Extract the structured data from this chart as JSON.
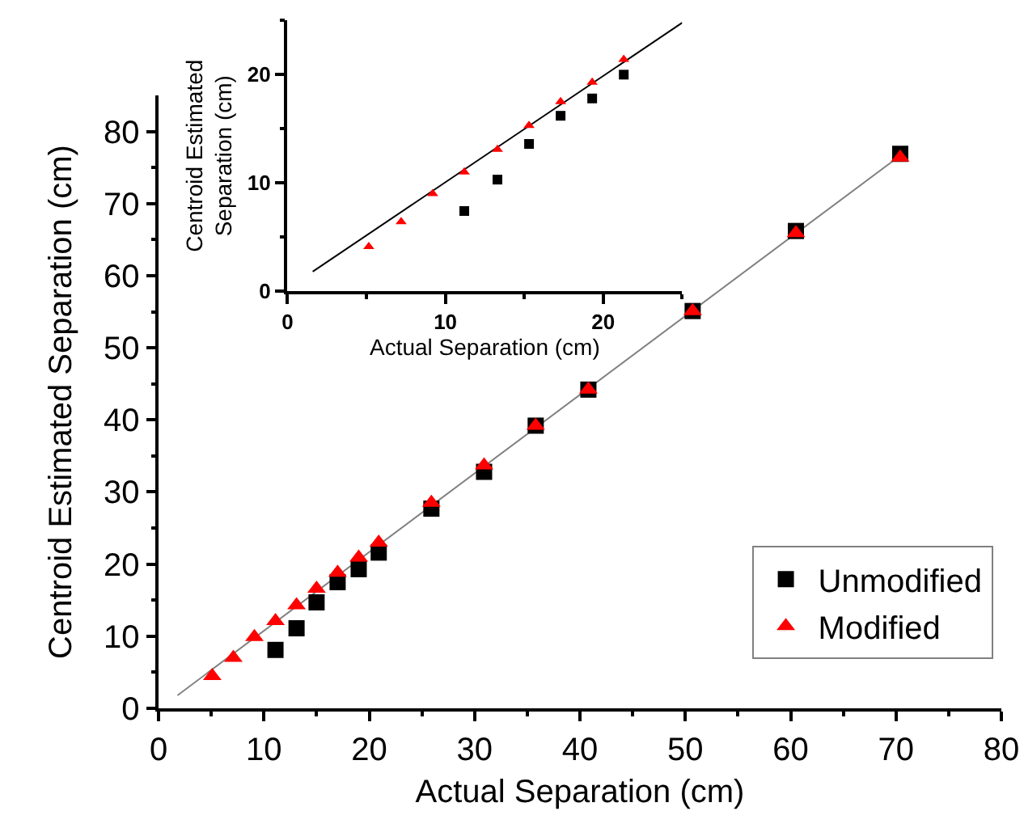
{
  "chart_data": [
    {
      "type": "scatter",
      "xlabel": "Actual Separation (cm)",
      "ylabel": "Centroid Estimated Separation (cm)",
      "xlim": [
        0,
        80
      ],
      "ylim": [
        0,
        85
      ],
      "xticks": [
        0,
        {
          "value": 5,
          "label": null
        },
        10,
        {
          "value": 15,
          "label": null
        },
        20,
        {
          "value": 25,
          "label": null
        },
        30,
        {
          "value": 35,
          "label": null
        },
        40,
        {
          "value": 45,
          "label": null
        },
        50,
        {
          "value": 55,
          "label": null
        },
        60,
        {
          "value": 65,
          "label": null
        },
        70,
        {
          "value": 75,
          "label": null
        },
        80
      ],
      "yticks": [
        0,
        {
          "value": 5,
          "label": null
        },
        10,
        {
          "value": 15,
          "label": null
        },
        20,
        {
          "value": 25,
          "label": null
        },
        30,
        {
          "value": 35,
          "label": null
        },
        40,
        {
          "value": 45,
          "label": null
        },
        50,
        {
          "value": 55,
          "label": null
        },
        60,
        {
          "value": 65,
          "label": null
        },
        70,
        {
          "value": 75,
          "label": null
        },
        80
      ],
      "legend": "bottom right",
      "series": [
        {
          "type": "line",
          "color": "#808080",
          "marker": "none",
          "line_style": "solid",
          "x": [
            1.8,
            70.8
          ],
          "values": [
            1.8,
            77.1
          ]
        },
        {
          "name": "Unmodified",
          "color": "#000000",
          "marker": "square",
          "x": [
            11.1,
            13.1,
            15.0,
            17.0,
            19.0,
            20.9,
            25.9,
            30.9,
            35.8,
            40.8,
            50.7,
            60.5,
            70.4
          ],
          "values": [
            8.1,
            11.1,
            14.7,
            17.5,
            19.3,
            21.6,
            27.7,
            32.8,
            39.2,
            44.2,
            55.1,
            66.2,
            76.9
          ]
        },
        {
          "name": "Modified",
          "color": "#ff0000",
          "marker": "triangle",
          "x": [
            5.1,
            7.1,
            9.1,
            11.1,
            13.1,
            15.0,
            17.0,
            19.0,
            20.9,
            25.9,
            30.9,
            35.8,
            40.8,
            50.7,
            60.5,
            70.4
          ],
          "values": [
            4.5,
            7.0,
            9.9,
            12.1,
            14.3,
            16.6,
            18.8,
            20.9,
            23.0,
            28.5,
            33.7,
            39.2,
            44.2,
            55.1,
            65.9,
            76.4
          ]
        }
      ]
    },
    {
      "type": "scatter",
      "xlabel": "Actual Separation (cm)",
      "ylabel": "Centroid Estimated\nSeparation (cm)",
      "xlim": [
        0,
        25
      ],
      "ylim": [
        0,
        25
      ],
      "xticks": [
        0,
        {
          "value": 5,
          "label": null
        },
        10,
        {
          "value": 15,
          "label": null
        },
        20,
        {
          "value": 25,
          "label": null
        }
      ],
      "yticks": [
        0,
        {
          "value": 5,
          "label": null
        },
        10,
        {
          "value": 15,
          "label": null
        },
        20,
        {
          "value": 25,
          "label": null
        }
      ],
      "legend": false,
      "series": [
        {
          "type": "line",
          "color": "#000000",
          "marker": "none",
          "line_style": "solid",
          "x": [
            1.6,
            25.0
          ],
          "values": [
            1.8,
            24.8
          ]
        },
        {
          "color": "#000000",
          "marker": "square",
          "x": [
            11.2,
            13.3,
            15.3,
            17.3,
            19.3,
            21.3
          ],
          "values": [
            7.4,
            10.3,
            13.6,
            16.2,
            17.8,
            20.0
          ]
        },
        {
          "color": "#ff0000",
          "marker": "triangle",
          "x": [
            5.15,
            7.2,
            9.2,
            11.2,
            13.3,
            15.3,
            17.3,
            19.3,
            21.3
          ],
          "values": [
            4.1,
            6.4,
            9.0,
            11.0,
            13.1,
            15.3,
            17.5,
            19.3,
            21.4
          ]
        }
      ]
    }
  ]
}
